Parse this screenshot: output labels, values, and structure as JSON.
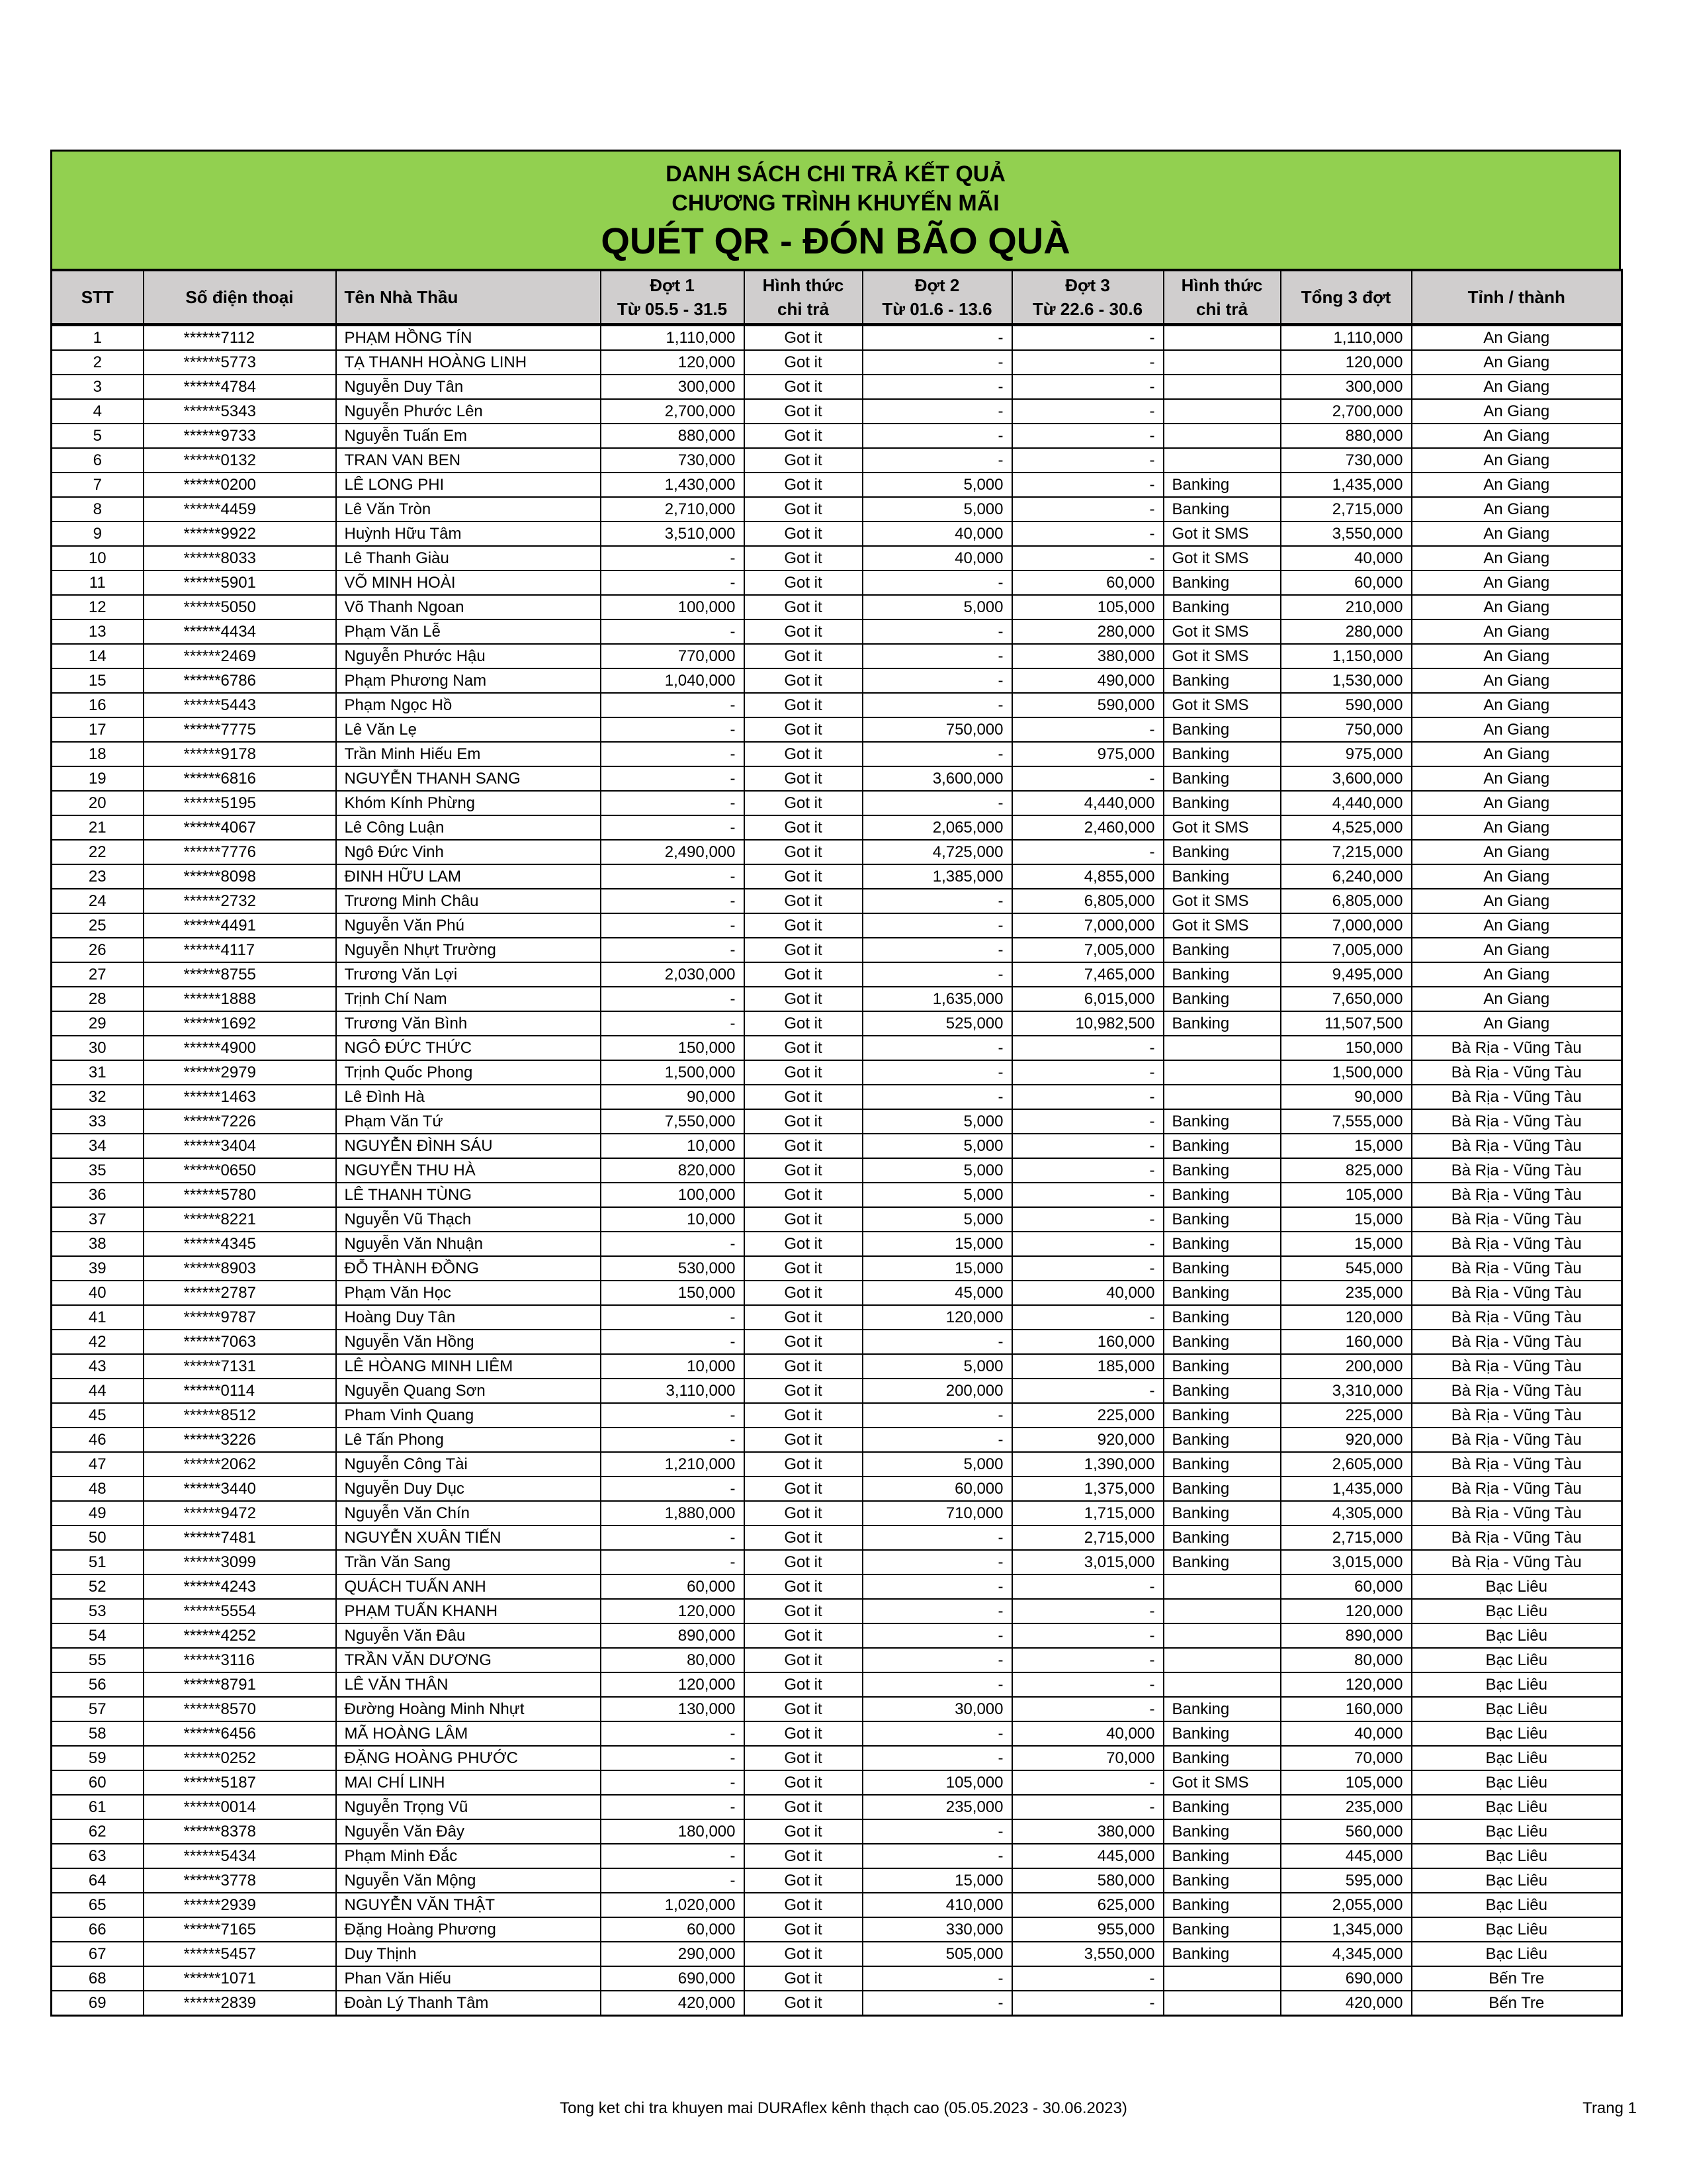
{
  "title": {
    "line1": "DANH SÁCH CHI TRẢ KẾT QUẢ",
    "line2": "CHƯƠNG TRÌNH KHUYẾN MÃI",
    "line3": "QUÉT QR - ĐÓN BÃO QUÀ",
    "background_color": "#92d050"
  },
  "headers": {
    "stt": "STT",
    "phone": "Số điện thoại",
    "name": "Tên Nhà Thầu",
    "dot1": "Đợt 1",
    "dot1_range": "Từ 05.5 - 31.5",
    "method1": "Hình thức",
    "method1b": "chi trả",
    "dot2": "Đợt 2",
    "dot2_range": "Từ 01.6 - 13.6",
    "dot3": "Đợt 3",
    "dot3_range": "Từ 22.6 - 30.6",
    "method2": "Hình thức",
    "method2b": "chi trả",
    "total": "Tổng 3 đợt",
    "province": "Tỉnh / thành"
  },
  "columns": [
    "stt",
    "phone",
    "name",
    "dot1",
    "method1",
    "dot2",
    "dot3",
    "method2",
    "total",
    "province"
  ],
  "rows": [
    [
      "1",
      "******7112",
      "PHẠM HỒNG TÍN",
      "1,110,000",
      "Got it",
      "-",
      "-",
      "",
      "1,110,000",
      "An Giang"
    ],
    [
      "2",
      "******5773",
      "TẠ THANH HOÀNG LINH",
      "120,000",
      "Got it",
      "-",
      "-",
      "",
      "120,000",
      "An Giang"
    ],
    [
      "3",
      "******4784",
      "Nguyễn Duy Tân",
      "300,000",
      "Got it",
      "-",
      "-",
      "",
      "300,000",
      "An Giang"
    ],
    [
      "4",
      "******5343",
      "Nguyễn Phước Lên",
      "2,700,000",
      "Got it",
      "-",
      "-",
      "",
      "2,700,000",
      "An Giang"
    ],
    [
      "5",
      "******9733",
      "Nguyễn Tuấn Em",
      "880,000",
      "Got it",
      "-",
      "-",
      "",
      "880,000",
      "An Giang"
    ],
    [
      "6",
      "******0132",
      "TRAN VAN BEN",
      "730,000",
      "Got it",
      "-",
      "-",
      "",
      "730,000",
      "An Giang"
    ],
    [
      "7",
      "******0200",
      "LÊ LONG PHI",
      "1,430,000",
      "Got it",
      "5,000",
      "-",
      "Banking",
      "1,435,000",
      "An Giang"
    ],
    [
      "8",
      "******4459",
      "Lê Văn Tròn",
      "2,710,000",
      "Got it",
      "5,000",
      "-",
      "Banking",
      "2,715,000",
      "An Giang"
    ],
    [
      "9",
      "******9922",
      "Huỳnh Hữu  Tâm",
      "3,510,000",
      "Got it",
      "40,000",
      "-",
      "Got it SMS",
      "3,550,000",
      "An Giang"
    ],
    [
      "10",
      "******8033",
      "Lê Thanh Giàu",
      "-",
      "Got it",
      "40,000",
      "-",
      "Got it SMS",
      "40,000",
      "An Giang"
    ],
    [
      "11",
      "******5901",
      "VÕ MINH HOÀI",
      "-",
      "Got it",
      "-",
      "60,000",
      "Banking",
      "60,000",
      "An Giang"
    ],
    [
      "12",
      "******5050",
      "Võ Thanh Ngoan",
      "100,000",
      "Got it",
      "5,000",
      "105,000",
      "Banking",
      "210,000",
      "An Giang"
    ],
    [
      "13",
      "******4434",
      "Phạm Văn  Lễ",
      "-",
      "Got it",
      "-",
      "280,000",
      "Got it SMS",
      "280,000",
      "An Giang"
    ],
    [
      "14",
      "******2469",
      "Nguyễn Phước Hậu",
      "770,000",
      "Got it",
      "-",
      "380,000",
      "Got it SMS",
      "1,150,000",
      "An Giang"
    ],
    [
      "15",
      "******6786",
      "Phạm Phương Nam",
      "1,040,000",
      "Got it",
      "-",
      "490,000",
      "Banking",
      "1,530,000",
      "An Giang"
    ],
    [
      "16",
      "******5443",
      "Phạm Ngọc Hồ",
      "-",
      "Got it",
      "-",
      "590,000",
      "Got it SMS",
      "590,000",
      "An Giang"
    ],
    [
      "17",
      "******7775",
      "Lê Văn Lẹ",
      "-",
      "Got it",
      "750,000",
      "-",
      "Banking",
      "750,000",
      "An Giang"
    ],
    [
      "18",
      "******9178",
      "Trần Minh Hiếu Em",
      "-",
      "Got it",
      "-",
      "975,000",
      "Banking",
      "975,000",
      "An Giang"
    ],
    [
      "19",
      "******6816",
      "NGUYỄN THANH SANG",
      "-",
      "Got it",
      "3,600,000",
      "-",
      "Banking",
      "3,600,000",
      "An Giang"
    ],
    [
      "20",
      "******5195",
      "Khóm Kính  Phừng",
      "-",
      "Got it",
      "-",
      "4,440,000",
      "Banking",
      "4,440,000",
      "An Giang"
    ],
    [
      "21",
      "******4067",
      "Lê Công Luận",
      "-",
      "Got it",
      "2,065,000",
      "2,460,000",
      "Got it SMS",
      "4,525,000",
      "An Giang"
    ],
    [
      "22",
      "******7776",
      "Ngô Đức Vinh",
      "2,490,000",
      "Got it",
      "4,725,000",
      "-",
      "Banking",
      "7,215,000",
      "An Giang"
    ],
    [
      "23",
      "******8098",
      "ĐINH HỮU LAM",
      "-",
      "Got it",
      "1,385,000",
      "4,855,000",
      "Banking",
      "6,240,000",
      "An Giang"
    ],
    [
      "24",
      "******2732",
      "Trương Minh Châu",
      "-",
      "Got it",
      "-",
      "6,805,000",
      "Got it SMS",
      "6,805,000",
      "An Giang"
    ],
    [
      "25",
      "******4491",
      "Nguyễn  Văn Phú",
      "-",
      "Got it",
      "-",
      "7,000,000",
      "Got it SMS",
      "7,000,000",
      "An Giang"
    ],
    [
      "26",
      "******4117",
      "Nguyễn Nhựt Trường",
      "-",
      "Got it",
      "-",
      "7,005,000",
      "Banking",
      "7,005,000",
      "An Giang"
    ],
    [
      "27",
      "******8755",
      "Trương Văn Lợi",
      "2,030,000",
      "Got it",
      "-",
      "7,465,000",
      "Banking",
      "9,495,000",
      "An Giang"
    ],
    [
      "28",
      "******1888",
      "Trịnh Chí Nam",
      "-",
      "Got it",
      "1,635,000",
      "6,015,000",
      "Banking",
      "7,650,000",
      "An Giang"
    ],
    [
      "29",
      "******1692",
      "Trương Văn Bình",
      "-",
      "Got it",
      "525,000",
      "10,982,500",
      "Banking",
      "11,507,500",
      "An Giang"
    ],
    [
      "30",
      "******4900",
      "NGÔ ĐỨC THỨC",
      "150,000",
      "Got it",
      "-",
      "-",
      "",
      "150,000",
      "Bà Rịa - Vũng Tàu"
    ],
    [
      "31",
      "******2979",
      "Trịnh Quốc  Phong",
      "1,500,000",
      "Got it",
      "-",
      "-",
      "",
      "1,500,000",
      "Bà Rịa - Vũng Tàu"
    ],
    [
      "32",
      "******1463",
      "Lê Đình  Hà",
      "90,000",
      "Got it",
      "-",
      "-",
      "",
      "90,000",
      "Bà Rịa - Vũng Tàu"
    ],
    [
      "33",
      "******7226",
      "Phạm Văn Tứ",
      "7,550,000",
      "Got it",
      "5,000",
      "-",
      "Banking",
      "7,555,000",
      "Bà Rịa - Vũng Tàu"
    ],
    [
      "34",
      "******3404",
      "NGUYỄN ĐÌNH SÁU",
      "10,000",
      "Got it",
      "5,000",
      "-",
      "Banking",
      "15,000",
      "Bà Rịa - Vũng Tàu"
    ],
    [
      "35",
      "******0650",
      "NGUYỄN THU HÀ",
      "820,000",
      "Got it",
      "5,000",
      "-",
      "Banking",
      "825,000",
      "Bà Rịa - Vũng Tàu"
    ],
    [
      "36",
      "******5780",
      "LÊ THANH TÙNG",
      "100,000",
      "Got it",
      "5,000",
      "-",
      "Banking",
      "105,000",
      "Bà Rịa - Vũng Tàu"
    ],
    [
      "37",
      "******8221",
      "Nguyễn Vũ Thạch",
      "10,000",
      "Got it",
      "5,000",
      "-",
      "Banking",
      "15,000",
      "Bà Rịa - Vũng Tàu"
    ],
    [
      "38",
      "******4345",
      "Nguyễn Văn Nhuận",
      "-",
      "Got it",
      "15,000",
      "-",
      "Banking",
      "15,000",
      "Bà Rịa - Vũng Tàu"
    ],
    [
      "39",
      "******8903",
      "ĐỖ THÀNH ĐỒNG",
      "530,000",
      "Got it",
      "15,000",
      "-",
      "Banking",
      "545,000",
      "Bà Rịa - Vũng Tàu"
    ],
    [
      "40",
      "******2787",
      "Phạm Văn Học",
      "150,000",
      "Got it",
      "45,000",
      "40,000",
      "Banking",
      "235,000",
      "Bà Rịa - Vũng Tàu"
    ],
    [
      "41",
      "******9787",
      "Hoàng Duy Tân",
      "-",
      "Got it",
      "120,000",
      "-",
      "Banking",
      "120,000",
      "Bà Rịa - Vũng Tàu"
    ],
    [
      "42",
      "******7063",
      "Nguyễn Văn Hồng",
      "-",
      "Got it",
      "-",
      "160,000",
      "Banking",
      "160,000",
      "Bà Rịa - Vũng Tàu"
    ],
    [
      "43",
      "******7131",
      "LÊ HÒANG MINH LIÊM",
      "10,000",
      "Got it",
      "5,000",
      "185,000",
      "Banking",
      "200,000",
      "Bà Rịa - Vũng Tàu"
    ],
    [
      "44",
      "******0114",
      "Nguyễn Quang Sơn",
      "3,110,000",
      "Got it",
      "200,000",
      "-",
      "Banking",
      "3,310,000",
      "Bà Rịa - Vũng Tàu"
    ],
    [
      "45",
      "******8512",
      "Pham Vinh Quang",
      "-",
      "Got it",
      "-",
      "225,000",
      "Banking",
      "225,000",
      "Bà Rịa - Vũng Tàu"
    ],
    [
      "46",
      "******3226",
      "Lê Tấn Phong",
      "-",
      "Got it",
      "-",
      "920,000",
      "Banking",
      "920,000",
      "Bà Rịa - Vũng Tàu"
    ],
    [
      "47",
      "******2062",
      "Nguyễn Công Tài",
      "1,210,000",
      "Got it",
      "5,000",
      "1,390,000",
      "Banking",
      "2,605,000",
      "Bà Rịa - Vũng Tàu"
    ],
    [
      "48",
      "******3440",
      "Nguyễn Duy Dục",
      "-",
      "Got it",
      "60,000",
      "1,375,000",
      "Banking",
      "1,435,000",
      "Bà Rịa - Vũng Tàu"
    ],
    [
      "49",
      "******9472",
      "Nguyễn Văn Chín",
      "1,880,000",
      "Got it",
      "710,000",
      "1,715,000",
      "Banking",
      "4,305,000",
      "Bà Rịa - Vũng Tàu"
    ],
    [
      "50",
      "******7481",
      "NGUYỄN XUÂN TIẾN",
      "-",
      "Got it",
      "-",
      "2,715,000",
      "Banking",
      "2,715,000",
      "Bà Rịa - Vũng Tàu"
    ],
    [
      "51",
      "******3099",
      "Trần Văn Sang",
      "-",
      "Got it",
      "-",
      "3,015,000",
      "Banking",
      "3,015,000",
      "Bà Rịa - Vũng Tàu"
    ],
    [
      "52",
      "******4243",
      "QUÁCH TUẤN ANH",
      "60,000",
      "Got it",
      "-",
      "-",
      "",
      "60,000",
      "Bạc Liêu"
    ],
    [
      "53",
      "******5554",
      "PHẠM TUẤN KHANH",
      "120,000",
      "Got it",
      "-",
      "-",
      "",
      "120,000",
      "Bạc Liêu"
    ],
    [
      "54",
      "******4252",
      "Nguyễn Văn Đâu",
      "890,000",
      "Got it",
      "-",
      "-",
      "",
      "890,000",
      "Bạc Liêu"
    ],
    [
      "55",
      "******3116",
      "TRẦN VĂN DƯƠNG",
      "80,000",
      "Got it",
      "-",
      "-",
      "",
      "80,000",
      "Bạc Liêu"
    ],
    [
      "56",
      "******8791",
      "LÊ VĂN THÂN",
      "120,000",
      "Got it",
      "-",
      "-",
      "",
      "120,000",
      "Bạc Liêu"
    ],
    [
      "57",
      "******8570",
      "Đường Hoàng Minh Nhựt",
      "130,000",
      "Got it",
      "30,000",
      "-",
      "Banking",
      "160,000",
      "Bạc Liêu"
    ],
    [
      "58",
      "******6456",
      "MÃ HOÀNG LÂM",
      "-",
      "Got it",
      "-",
      "40,000",
      "Banking",
      "40,000",
      "Bạc Liêu"
    ],
    [
      "59",
      "******0252",
      "ĐẶNG HOÀNG PHƯỚC",
      "-",
      "Got it",
      "-",
      "70,000",
      "Banking",
      "70,000",
      "Bạc Liêu"
    ],
    [
      "60",
      "******5187",
      "MAI CHÍ LINH",
      "-",
      "Got it",
      "105,000",
      "-",
      "Got it SMS",
      "105,000",
      "Bạc Liêu"
    ],
    [
      "61",
      "******0014",
      "Nguyễn Trọng Vũ",
      "-",
      "Got it",
      "235,000",
      "-",
      "Banking",
      "235,000",
      "Bạc Liêu"
    ],
    [
      "62",
      "******8378",
      "Nguyễn Văn Đây",
      "180,000",
      "Got it",
      "-",
      "380,000",
      "Banking",
      "560,000",
      "Bạc Liêu"
    ],
    [
      "63",
      "******5434",
      "Phạm Minh Đắc",
      "-",
      "Got it",
      "-",
      "445,000",
      "Banking",
      "445,000",
      "Bạc Liêu"
    ],
    [
      "64",
      "******3778",
      "Nguyễn Văn Mộng",
      "-",
      "Got it",
      "15,000",
      "580,000",
      "Banking",
      "595,000",
      "Bạc Liêu"
    ],
    [
      "65",
      "******2939",
      "NGUYỄN VĂN THẬT",
      "1,020,000",
      "Got it",
      "410,000",
      "625,000",
      "Banking",
      "2,055,000",
      "Bạc Liêu"
    ],
    [
      "66",
      "******7165",
      "Đặng Hoàng Phương",
      "60,000",
      "Got it",
      "330,000",
      "955,000",
      "Banking",
      "1,345,000",
      "Bạc Liêu"
    ],
    [
      "67",
      "******5457",
      "Duy Thịnh",
      "290,000",
      "Got it",
      "505,000",
      "3,550,000",
      "Banking",
      "4,345,000",
      "Bạc Liêu"
    ],
    [
      "68",
      "******1071",
      "Phan Văn Hiếu",
      "690,000",
      "Got it",
      "-",
      "-",
      "",
      "690,000",
      "Bến Tre"
    ],
    [
      "69",
      "******2839",
      "Đoàn Lý Thanh Tâm",
      "420,000",
      "Got it",
      "-",
      "-",
      "",
      "420,000",
      "Bến Tre"
    ]
  ],
  "footer": {
    "text": "Tong ket chi tra khuyen mai DURAflex kênh thạch cao (05.05.2023 - 30.06.2023)",
    "page": "Trang 1"
  }
}
